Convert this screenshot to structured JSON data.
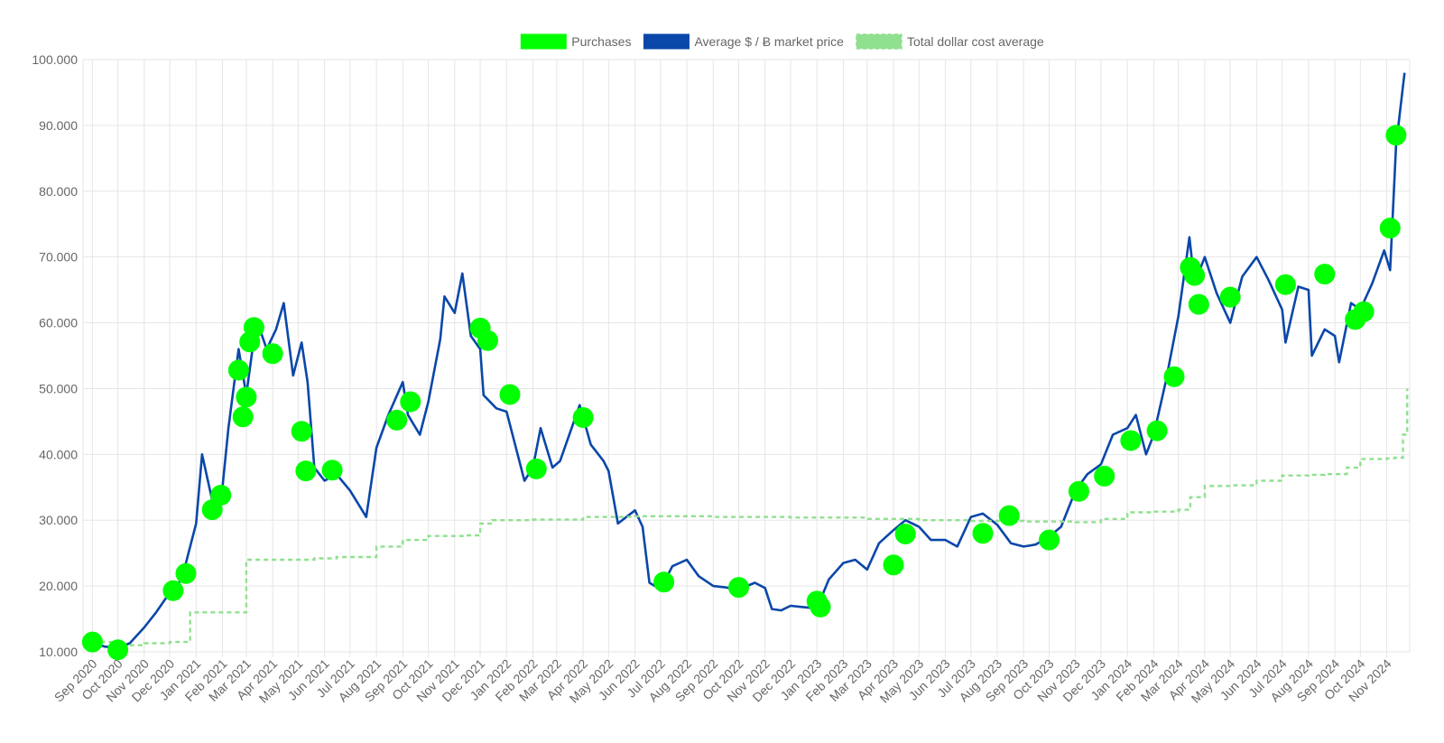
{
  "chart_data": {
    "type": "line",
    "title": "",
    "xlabel": "",
    "ylabel": "",
    "ylim": [
      10000,
      100000
    ],
    "y_ticks": [
      10000,
      20000,
      30000,
      40000,
      50000,
      60000,
      70000,
      80000,
      90000,
      100000
    ],
    "y_tick_labels": [
      "10.000",
      "20.000",
      "30.000",
      "40.000",
      "50.000",
      "60.000",
      "70.000",
      "80.000",
      "90.000",
      "100.000"
    ],
    "x_tick_labels": [
      "Sep 2020",
      "Oct 2020",
      "Nov 2020",
      "Dec 2020",
      "Jan 2021",
      "Feb 2021",
      "Mar 2021",
      "Apr 2021",
      "May 2021",
      "Jun 2021",
      "Jul 2021",
      "Aug 2021",
      "Sep 2021",
      "Oct 2021",
      "Nov 2021",
      "Dec 2021",
      "Jan 2022",
      "Feb 2022",
      "Mar 2022",
      "Apr 2022",
      "May 2022",
      "Jun 2022",
      "Jul 2022",
      "Aug 2022",
      "Sep 2022",
      "Oct 2022",
      "Nov 2022",
      "Dec 2022",
      "Jan 2023",
      "Feb 2023",
      "Mar 2023",
      "Apr 2023",
      "May 2023",
      "Jun 2023",
      "Jul 2023",
      "Aug 2023",
      "Sep 2023",
      "Oct 2023",
      "Nov 2023",
      "Dec 2023",
      "Jan 2024",
      "Feb 2024",
      "Mar 2024",
      "Apr 2024",
      "May 2024",
      "Jun 2024",
      "Jul 2024",
      "Aug 2024",
      "Sep 2024",
      "Oct 2024",
      "Nov 2024"
    ],
    "grid": true,
    "legend_position": "top-center",
    "legend": [
      {
        "label": "Purchases",
        "color": "#00ff00",
        "style": "filled-box"
      },
      {
        "label": "Average $ / Ƀ market price",
        "color": "#0a47a9",
        "style": "filled-box"
      },
      {
        "label": "Total dollar cost average",
        "color": "#90e090",
        "style": "dashed-box"
      }
    ],
    "series": [
      {
        "name": "Average $ / Ƀ market price",
        "color": "#0a47a9",
        "x": [
          "2020-09-01",
          "2020-09-15",
          "2020-10-01",
          "2020-10-15",
          "2020-11-01",
          "2020-11-15",
          "2020-12-01",
          "2020-12-15",
          "2021-01-01",
          "2021-01-08",
          "2021-01-20",
          "2021-02-01",
          "2021-02-08",
          "2021-02-20",
          "2021-03-01",
          "2021-03-13",
          "2021-03-25",
          "2021-04-05",
          "2021-04-14",
          "2021-04-25",
          "2021-05-05",
          "2021-05-12",
          "2021-05-20",
          "2021-06-01",
          "2021-06-15",
          "2021-07-01",
          "2021-07-20",
          "2021-08-01",
          "2021-08-15",
          "2021-09-01",
          "2021-09-07",
          "2021-09-21",
          "2021-10-01",
          "2021-10-15",
          "2021-10-20",
          "2021-11-01",
          "2021-11-10",
          "2021-11-20",
          "2021-12-01",
          "2021-12-05",
          "2021-12-20",
          "2022-01-01",
          "2022-01-10",
          "2022-01-22",
          "2022-02-01",
          "2022-02-10",
          "2022-02-24",
          "2022-03-05",
          "2022-03-28",
          "2022-04-10",
          "2022-04-25",
          "2022-05-01",
          "2022-05-12",
          "2022-06-01",
          "2022-06-10",
          "2022-06-18",
          "2022-07-01",
          "2022-07-15",
          "2022-08-01",
          "2022-08-15",
          "2022-09-01",
          "2022-09-15",
          "2022-10-01",
          "2022-10-20",
          "2022-11-01",
          "2022-11-09",
          "2022-11-20",
          "2022-12-01",
          "2022-12-15",
          "2023-01-01",
          "2023-01-15",
          "2023-02-01",
          "2023-02-15",
          "2023-03-01",
          "2023-03-15",
          "2023-04-01",
          "2023-04-15",
          "2023-05-01",
          "2023-05-15",
          "2023-06-01",
          "2023-06-15",
          "2023-07-01",
          "2023-07-15",
          "2023-08-01",
          "2023-08-17",
          "2023-09-01",
          "2023-09-15",
          "2023-10-01",
          "2023-10-15",
          "2023-11-01",
          "2023-11-15",
          "2023-12-01",
          "2023-12-15",
          "2024-01-01",
          "2024-01-11",
          "2024-01-23",
          "2024-02-01",
          "2024-02-15",
          "2024-03-01",
          "2024-03-14",
          "2024-03-20",
          "2024-04-01",
          "2024-04-15",
          "2024-05-01",
          "2024-05-15",
          "2024-06-01",
          "2024-06-15",
          "2024-07-01",
          "2024-07-05",
          "2024-07-20",
          "2024-08-01",
          "2024-08-05",
          "2024-08-20",
          "2024-09-01",
          "2024-09-06",
          "2024-09-20",
          "2024-10-01",
          "2024-10-15",
          "2024-10-29",
          "2024-11-05",
          "2024-11-12",
          "2024-11-22"
        ],
        "y": [
          11500,
          10800,
          10600,
          11300,
          13700,
          16000,
          19000,
          21000,
          29500,
          40000,
          33000,
          35000,
          44000,
          56000,
          49000,
          60500,
          56000,
          59000,
          63000,
          52000,
          57000,
          51000,
          38000,
          36000,
          37000,
          34500,
          30500,
          41000,
          46000,
          51000,
          46000,
          43000,
          48000,
          57500,
          64000,
          61500,
          67500,
          58000,
          56000,
          49000,
          47000,
          46500,
          42000,
          36000,
          38000,
          44000,
          38000,
          39000,
          47500,
          41500,
          39000,
          37500,
          29500,
          31500,
          29000,
          20500,
          19500,
          23000,
          24000,
          21500,
          20000,
          19800,
          19500,
          20500,
          19700,
          16500,
          16300,
          17000,
          16800,
          16600,
          21000,
          23500,
          24000,
          22500,
          26500,
          28500,
          30000,
          29000,
          27000,
          27000,
          26000,
          30500,
          31000,
          29300,
          26500,
          26000,
          26300,
          27500,
          29000,
          34500,
          37000,
          38500,
          43000,
          44000,
          46000,
          40000,
          43000,
          51000,
          61000,
          73000,
          66000,
          70000,
          64500,
          60000,
          67000,
          70000,
          66500,
          62000,
          57000,
          65500,
          65000,
          55000,
          59000,
          58000,
          54000,
          63000,
          62000,
          66000,
          71000,
          68000,
          87000,
          98000
        ]
      },
      {
        "name": "Total dollar cost average",
        "color": "#90e090",
        "step": true,
        "x": [
          "2020-09-01",
          "2020-10-01",
          "2020-11-01",
          "2020-12-01",
          "2020-12-25",
          "2021-02-20",
          "2021-03-01",
          "2021-05-20",
          "2021-06-15",
          "2021-08-01",
          "2021-09-01",
          "2021-10-01",
          "2021-11-15",
          "2021-12-01",
          "2021-12-15",
          "2022-02-01",
          "2022-04-01",
          "2022-06-01",
          "2022-09-01",
          "2022-12-01",
          "2023-03-01",
          "2023-05-01",
          "2023-07-01",
          "2023-09-01",
          "2023-11-01",
          "2023-12-01",
          "2024-01-01",
          "2024-02-01",
          "2024-03-01",
          "2024-03-15",
          "2024-04-01",
          "2024-05-01",
          "2024-06-01",
          "2024-07-01",
          "2024-08-01",
          "2024-08-20",
          "2024-09-15",
          "2024-10-01",
          "2024-11-01",
          "2024-11-10",
          "2024-11-20",
          "2024-11-25"
        ],
        "y": [
          11500,
          11000,
          11300,
          11500,
          16000,
          16000,
          24000,
          24200,
          24400,
          26000,
          27000,
          27600,
          27700,
          29500,
          30000,
          30100,
          30500,
          30600,
          30500,
          30400,
          30200,
          30000,
          29900,
          29800,
          29700,
          30200,
          31200,
          31300,
          31600,
          33500,
          35200,
          35300,
          36000,
          36800,
          36900,
          37000,
          38000,
          39300,
          39400,
          39500,
          43000,
          50000
        ]
      }
    ],
    "purchases": {
      "name": "Purchases",
      "color": "#00ff00",
      "x": [
        "2020-09-01",
        "2020-10-01",
        "2020-12-05",
        "2020-12-20",
        "2021-01-20",
        "2021-01-30",
        "2021-02-20",
        "2021-02-25",
        "2021-03-01",
        "2021-03-05",
        "2021-03-10",
        "2021-04-01",
        "2021-05-05",
        "2021-05-10",
        "2021-06-10",
        "2021-08-25",
        "2021-09-10",
        "2021-12-01",
        "2021-12-10",
        "2022-01-05",
        "2022-02-05",
        "2022-04-01",
        "2022-07-05",
        "2022-10-01",
        "2023-01-01",
        "2023-01-05",
        "2023-04-01",
        "2023-04-15",
        "2023-07-15",
        "2023-08-15",
        "2023-10-01",
        "2023-11-05",
        "2023-12-05",
        "2024-01-05",
        "2024-02-05",
        "2024-02-25",
        "2024-03-15",
        "2024-03-20",
        "2024-03-25",
        "2024-05-01",
        "2024-07-05",
        "2024-08-20",
        "2024-09-25",
        "2024-10-05",
        "2024-11-05",
        "2024-11-12"
      ],
      "y": [
        11500,
        10300,
        19300,
        21900,
        31600,
        33800,
        52800,
        45700,
        48700,
        57100,
        59300,
        55300,
        43500,
        37500,
        37600,
        45200,
        48000,
        59200,
        57300,
        49100,
        37800,
        45600,
        20600,
        19800,
        17700,
        16800,
        23200,
        27900,
        28000,
        30700,
        27000,
        34400,
        36700,
        42100,
        43600,
        51800,
        68400,
        67200,
        62800,
        63900,
        65800,
        67400,
        60500,
        61700,
        74400,
        88500
      ]
    }
  }
}
